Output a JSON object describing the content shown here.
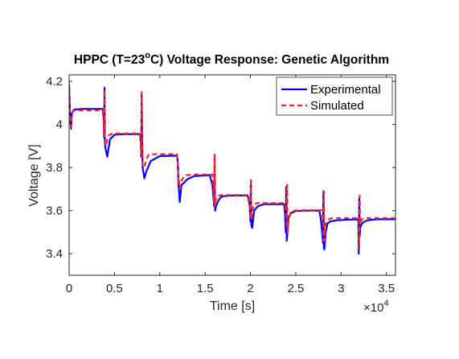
{
  "chart_data": {
    "type": "line",
    "title_main": "HPPC (T=23",
    "title_sup": "o",
    "title_rest": "C) Voltage Response: Genetic Algorithm",
    "xlabel": "Time [s]",
    "ylabel": "Voltage [V]",
    "x_exponent_base": "×10",
    "x_exponent_power": "4",
    "xlim": [
      0,
      36000
    ],
    "ylim": [
      3.3,
      4.23
    ],
    "xticks": [
      0,
      5000,
      10000,
      15000,
      20000,
      25000,
      30000,
      35000
    ],
    "xtick_labels": [
      "0",
      "0.5",
      "1",
      "1.5",
      "2",
      "2.5",
      "3",
      "3.5"
    ],
    "yticks": [
      3.4,
      3.6,
      3.8,
      4.0,
      4.2
    ],
    "ytick_labels": [
      "3.4",
      "3.6",
      "3.8",
      "4",
      "4.2"
    ],
    "grid": false,
    "legend_position": "top-right",
    "colors": {
      "experimental": "#0000ff",
      "simulated": "#ff2222"
    },
    "series": [
      {
        "name": "Experimental",
        "style": "solid",
        "x": [
          0,
          60,
          120,
          200,
          300,
          500,
          800,
          1500,
          3700,
          3800,
          3850,
          3900,
          3950,
          4050,
          4200,
          4500,
          5000,
          6000,
          7800,
          7900,
          7950,
          8000,
          8100,
          8300,
          8500,
          9000,
          10000,
          11900,
          12000,
          12050,
          12100,
          12200,
          12400,
          12700,
          13000,
          13800,
          15500,
          15800,
          16000,
          16050,
          16100,
          16200,
          16500,
          16800,
          17200,
          18000,
          19700,
          19900,
          20000,
          20050,
          20100,
          20200,
          20400,
          20800,
          21500,
          23700,
          23800,
          23900,
          23950,
          24000,
          24050,
          24200,
          24500,
          25000,
          26000,
          27600,
          27800,
          28000,
          28050,
          28100,
          28150,
          28300,
          28500,
          28800,
          29500,
          31800,
          31900,
          31950,
          32000,
          32050,
          32100,
          32300,
          32600,
          33000,
          34000,
          36000
        ],
        "y": [
          4.18,
          4.1,
          4.03,
          3.98,
          4.05,
          4.067,
          4.07,
          4.072,
          4.072,
          4.03,
          3.94,
          4.17,
          3.91,
          3.88,
          3.85,
          3.93,
          3.952,
          3.955,
          3.955,
          3.92,
          3.85,
          4.14,
          3.8,
          3.75,
          3.78,
          3.83,
          3.853,
          3.855,
          3.82,
          3.72,
          3.7,
          3.64,
          3.72,
          3.73,
          3.745,
          3.76,
          3.765,
          3.72,
          3.62,
          3.85,
          3.6,
          3.62,
          3.65,
          3.665,
          3.668,
          3.67,
          3.67,
          3.63,
          3.55,
          3.74,
          3.53,
          3.52,
          3.6,
          3.62,
          3.63,
          3.63,
          3.6,
          3.5,
          3.71,
          3.46,
          3.48,
          3.57,
          3.59,
          3.598,
          3.6,
          3.6,
          3.55,
          3.45,
          3.69,
          3.43,
          3.42,
          3.5,
          3.54,
          3.55,
          3.555,
          3.56,
          3.55,
          3.4,
          3.66,
          3.48,
          3.52,
          3.54,
          3.55,
          3.556,
          3.56,
          3.56
        ]
      },
      {
        "name": "Simulated",
        "style": "dashed",
        "x": [
          0,
          60,
          120,
          200,
          300,
          500,
          900,
          1600,
          3700,
          3800,
          3850,
          3900,
          3950,
          4050,
          4200,
          4400,
          4800,
          6000,
          7800,
          7900,
          7950,
          8000,
          8100,
          8300,
          8500,
          8800,
          9500,
          11900,
          12000,
          12050,
          12100,
          12200,
          12400,
          12700,
          13000,
          14000,
          15800,
          15900,
          16000,
          16050,
          16100,
          16200,
          16400,
          16800,
          18000,
          19800,
          19900,
          20000,
          20050,
          20100,
          20200,
          20400,
          20800,
          21500,
          23800,
          23900,
          24000,
          24050,
          24100,
          24200,
          24400,
          24800,
          26000,
          27900,
          28000,
          28050,
          28100,
          28150,
          28300,
          28600,
          29000,
          31900,
          31950,
          32000,
          32050,
          32100,
          32300,
          32600,
          33500,
          36000
        ],
        "y": [
          4.19,
          4.09,
          4.02,
          3.99,
          4.05,
          4.063,
          4.065,
          4.065,
          4.065,
          4.02,
          3.95,
          4.16,
          3.92,
          3.9,
          3.93,
          3.95,
          3.958,
          3.958,
          3.958,
          3.92,
          3.86,
          4.15,
          3.81,
          3.8,
          3.84,
          3.86,
          3.862,
          3.862,
          3.82,
          3.72,
          3.75,
          3.7,
          3.74,
          3.76,
          3.765,
          3.768,
          3.768,
          3.72,
          3.63,
          3.86,
          3.62,
          3.66,
          3.668,
          3.672,
          3.672,
          3.672,
          3.63,
          3.56,
          3.75,
          3.56,
          3.6,
          3.63,
          3.635,
          3.635,
          3.635,
          3.6,
          3.52,
          3.72,
          3.5,
          3.55,
          3.59,
          3.6,
          3.602,
          3.602,
          3.55,
          3.46,
          3.7,
          3.46,
          3.54,
          3.56,
          3.565,
          3.565,
          3.55,
          3.42,
          3.67,
          3.54,
          3.56,
          3.565,
          3.565,
          3.565
        ]
      }
    ]
  }
}
